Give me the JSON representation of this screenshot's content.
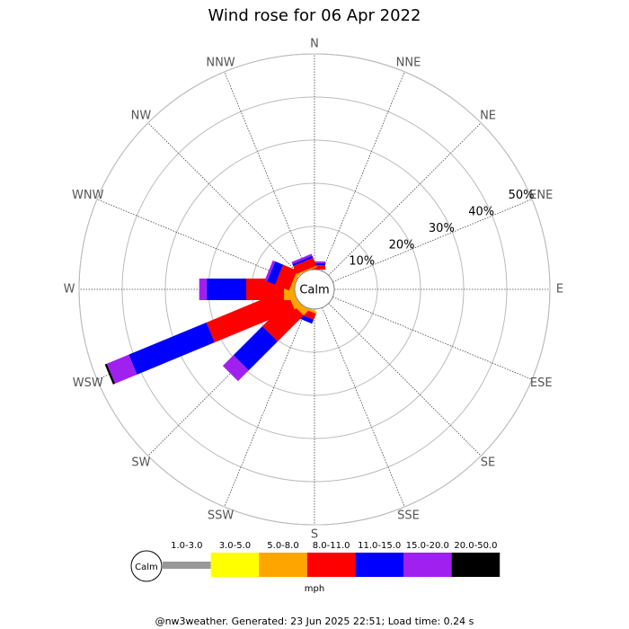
{
  "chart_data": {
    "type": "windrose",
    "title": "Wind rose for 06 Apr 2022",
    "directions": [
      "N",
      "NNE",
      "NE",
      "ENE",
      "E",
      "ESE",
      "SE",
      "SSE",
      "S",
      "SSW",
      "SW",
      "WSW",
      "W",
      "WNW",
      "NW",
      "NNW"
    ],
    "calm_label": "Calm",
    "series": [
      {
        "name": "1.0-3.0",
        "color": "#999999",
        "values": [
          0,
          0,
          0,
          0,
          0,
          0,
          0,
          0,
          0,
          0,
          0,
          0,
          0,
          0,
          0,
          0
        ]
      },
      {
        "name": "3.0-5.0",
        "color": "#ffff00",
        "values": [
          0,
          0,
          0,
          0,
          0,
          0,
          0,
          0,
          0,
          0,
          0,
          0,
          0,
          0,
          0,
          0
        ]
      },
      {
        "name": "5.0-8.0",
        "color": "#ffa500",
        "values": [
          0,
          0,
          0,
          0,
          0,
          0,
          0,
          0,
          0,
          0.5,
          1.5,
          1.5,
          2.5,
          0.8,
          0,
          0.3
        ]
      },
      {
        "name": "8.0-11.0",
        "color": "#ff0000",
        "values": [
          1,
          0,
          0,
          0,
          0,
          0,
          0,
          0,
          0,
          1.5,
          8.5,
          20,
          8.75,
          3.5,
          0,
          2
        ]
      },
      {
        "name": "11.0-15.0",
        "color": "#0000ff",
        "values": [
          0.5,
          0,
          0,
          0,
          0,
          0,
          0,
          0,
          0,
          1,
          9.5,
          19.5,
          9.2,
          2,
          0,
          0.5
        ]
      },
      {
        "name": "15.0-20.0",
        "color": "#a020f0",
        "values": [
          0.4,
          0,
          0,
          0,
          0,
          0,
          0,
          0,
          0,
          0,
          3.5,
          5.5,
          1.7,
          0.6,
          0,
          0.5
        ]
      },
      {
        "name": "20.0-50.0",
        "color": "#000000",
        "values": [
          0,
          0,
          0,
          0,
          0,
          0,
          0,
          0,
          0,
          0,
          0,
          0.5,
          0,
          0,
          0,
          0
        ]
      }
    ],
    "ylim": [
      0,
      50
    ],
    "yticks": [
      {
        "value": 10,
        "label": "10%"
      },
      {
        "value": 20,
        "label": "20%"
      },
      {
        "value": 30,
        "label": "30%"
      },
      {
        "value": 40,
        "label": "40%"
      },
      {
        "value": 50,
        "label": "50%"
      }
    ],
    "unit": "mph",
    "footer": "@nw3weather. Generated: 23 Jun 2025 22:51; Load time: 0.24 s"
  }
}
